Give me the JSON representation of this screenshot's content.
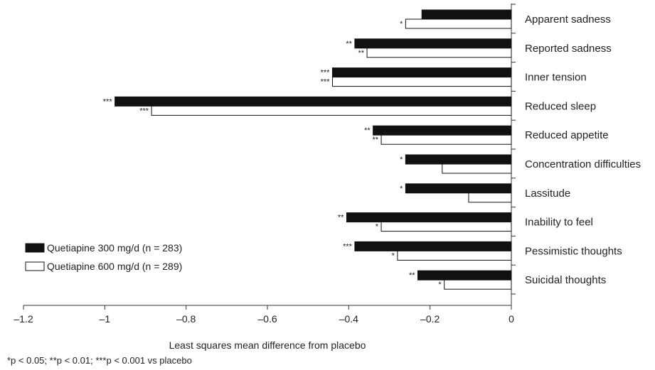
{
  "chart_data": {
    "type": "bar",
    "orientation": "horizontal",
    "categories": [
      "Apparent sadness",
      "Reported sadness",
      "Inner tension",
      "Reduced sleep",
      "Reduced appetite",
      "Concentration difficulties",
      "Lassitude",
      "Inability to feel",
      "Pessimistic thoughts",
      "Suicidal thoughts"
    ],
    "series": [
      {
        "name": "Quetiapine 300 mg/d (n = 283)",
        "color": "#111111",
        "fill": "solid",
        "values": [
          -0.22,
          -0.385,
          -0.44,
          -0.975,
          -0.34,
          -0.26,
          -0.26,
          -0.405,
          -0.385,
          -0.23
        ],
        "significance": [
          "",
          "**",
          "***",
          "***",
          "**",
          "*",
          "*",
          "**",
          "***",
          "**"
        ]
      },
      {
        "name": "Quetiapine 600 mg/d (n = 289)",
        "color": "#ffffff",
        "fill": "outline",
        "values": [
          -0.26,
          -0.355,
          -0.44,
          -0.885,
          -0.32,
          -0.17,
          -0.105,
          -0.32,
          -0.28,
          -0.165
        ],
        "significance": [
          "*",
          "**",
          "***",
          "***",
          "**",
          "",
          "",
          "*",
          "*",
          "*"
        ]
      }
    ],
    "xlabel": "Least squares mean difference from placebo",
    "ylabel": "",
    "xlim": [
      -1.2,
      0
    ],
    "xticks": [
      -1.2,
      -1,
      -0.8,
      -0.6,
      -0.4,
      -0.2,
      0
    ],
    "xtick_labels": [
      "–1.2",
      "–1",
      "–0.8",
      "–0.6",
      "–0.4",
      "–0.2",
      "0"
    ],
    "legend_position": "lower-left",
    "grid": false,
    "footnote": "*p < 0.05; **p < 0.01;  ***p < 0.001 vs placebo"
  }
}
